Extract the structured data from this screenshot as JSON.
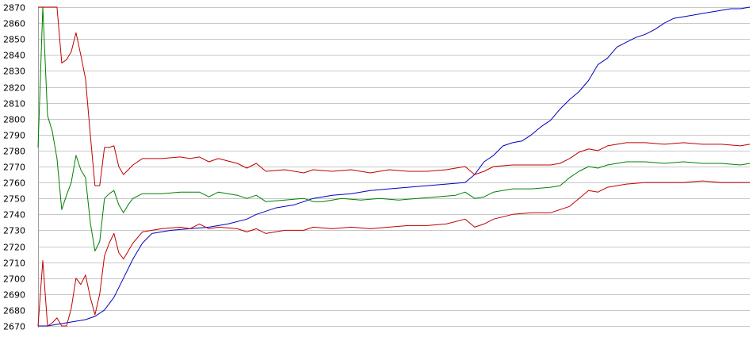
{
  "chart_data": {
    "type": "line",
    "title": "",
    "xlabel": "",
    "ylabel": "",
    "ylim": [
      2670,
      2870
    ],
    "xlim": [
      0,
      150
    ],
    "grid": true,
    "yticks": [
      2670,
      2680,
      2690,
      2700,
      2710,
      2720,
      2730,
      2740,
      2750,
      2760,
      2770,
      2780,
      2790,
      2800,
      2810,
      2820,
      2830,
      2840,
      2850,
      2860,
      2870
    ],
    "series": [
      {
        "color": "#0000c0",
        "points": [
          [
            0,
            2670
          ],
          [
            2,
            2670
          ],
          [
            4,
            2671
          ],
          [
            6,
            2672
          ],
          [
            8,
            2673
          ],
          [
            10,
            2674
          ],
          [
            12,
            2676
          ],
          [
            14,
            2680
          ],
          [
            16,
            2688
          ],
          [
            18,
            2700
          ],
          [
            20,
            2712
          ],
          [
            22,
            2722
          ],
          [
            24,
            2728
          ],
          [
            28,
            2730
          ],
          [
            32,
            2731
          ],
          [
            36,
            2732
          ],
          [
            40,
            2734
          ],
          [
            44,
            2737
          ],
          [
            46,
            2740
          ],
          [
            50,
            2744
          ],
          [
            54,
            2746
          ],
          [
            58,
            2750
          ],
          [
            62,
            2752
          ],
          [
            66,
            2753
          ],
          [
            70,
            2755
          ],
          [
            74,
            2756
          ],
          [
            78,
            2757
          ],
          [
            82,
            2758
          ],
          [
            86,
            2759
          ],
          [
            90,
            2760
          ],
          [
            92,
            2765
          ],
          [
            94,
            2773
          ],
          [
            96,
            2777
          ],
          [
            98,
            2783
          ],
          [
            100,
            2785
          ],
          [
            102,
            2786
          ],
          [
            104,
            2790
          ],
          [
            106,
            2795
          ],
          [
            108,
            2799
          ],
          [
            110,
            2806
          ],
          [
            112,
            2812
          ],
          [
            114,
            2817
          ],
          [
            116,
            2824
          ],
          [
            118,
            2834
          ],
          [
            120,
            2838
          ],
          [
            122,
            2845
          ],
          [
            124,
            2848
          ],
          [
            126,
            2851
          ],
          [
            128,
            2853
          ],
          [
            130,
            2856
          ],
          [
            132,
            2860
          ],
          [
            134,
            2863
          ],
          [
            136,
            2864
          ],
          [
            138,
            2865
          ],
          [
            140,
            2866
          ],
          [
            142,
            2867
          ],
          [
            144,
            2868
          ],
          [
            146,
            2869
          ],
          [
            148,
            2869
          ],
          [
            150,
            2870
          ]
        ]
      },
      {
        "color": "#008000",
        "points": [
          [
            0,
            2782
          ],
          [
            1,
            2870
          ],
          [
            2,
            2802
          ],
          [
            3,
            2792
          ],
          [
            4,
            2775
          ],
          [
            5,
            2743
          ],
          [
            6,
            2752
          ],
          [
            7,
            2760
          ],
          [
            8,
            2777
          ],
          [
            9,
            2768
          ],
          [
            10,
            2763
          ],
          [
            11,
            2735
          ],
          [
            12,
            2717
          ],
          [
            13,
            2723
          ],
          [
            14,
            2750
          ],
          [
            15,
            2753
          ],
          [
            16,
            2755
          ],
          [
            17,
            2746
          ],
          [
            18,
            2741
          ],
          [
            19,
            2746
          ],
          [
            20,
            2750
          ],
          [
            22,
            2753
          ],
          [
            26,
            2753
          ],
          [
            30,
            2754
          ],
          [
            34,
            2754
          ],
          [
            36,
            2751
          ],
          [
            38,
            2754
          ],
          [
            42,
            2752
          ],
          [
            44,
            2750
          ],
          [
            46,
            2752
          ],
          [
            48,
            2748
          ],
          [
            52,
            2749
          ],
          [
            56,
            2750
          ],
          [
            58,
            2748
          ],
          [
            60,
            2748
          ],
          [
            64,
            2750
          ],
          [
            68,
            2749
          ],
          [
            72,
            2750
          ],
          [
            76,
            2749
          ],
          [
            80,
            2750
          ],
          [
            84,
            2751
          ],
          [
            88,
            2752
          ],
          [
            90,
            2754
          ],
          [
            92,
            2750
          ],
          [
            94,
            2751
          ],
          [
            96,
            2754
          ],
          [
            100,
            2756
          ],
          [
            104,
            2756
          ],
          [
            108,
            2757
          ],
          [
            110,
            2758
          ],
          [
            112,
            2763
          ],
          [
            114,
            2767
          ],
          [
            116,
            2770
          ],
          [
            118,
            2769
          ],
          [
            120,
            2771
          ],
          [
            124,
            2773
          ],
          [
            128,
            2773
          ],
          [
            132,
            2772
          ],
          [
            136,
            2773
          ],
          [
            140,
            2772
          ],
          [
            144,
            2772
          ],
          [
            148,
            2771
          ],
          [
            150,
            2772
          ]
        ]
      },
      {
        "color": "#c00000",
        "points": [
          [
            0,
            2870
          ],
          [
            2,
            2870
          ],
          [
            4,
            2870
          ],
          [
            5,
            2835
          ],
          [
            6,
            2837
          ],
          [
            7,
            2842
          ],
          [
            8,
            2854
          ],
          [
            9,
            2840
          ],
          [
            10,
            2825
          ],
          [
            11,
            2790
          ],
          [
            12,
            2758
          ],
          [
            13,
            2758
          ],
          [
            14,
            2782
          ],
          [
            15,
            2782
          ],
          [
            16,
            2783
          ],
          [
            17,
            2770
          ],
          [
            18,
            2765
          ],
          [
            20,
            2771
          ],
          [
            22,
            2775
          ],
          [
            26,
            2775
          ],
          [
            30,
            2776
          ],
          [
            32,
            2775
          ],
          [
            34,
            2776
          ],
          [
            36,
            2773
          ],
          [
            38,
            2775
          ],
          [
            42,
            2772
          ],
          [
            44,
            2769
          ],
          [
            46,
            2772
          ],
          [
            48,
            2767
          ],
          [
            52,
            2768
          ],
          [
            56,
            2766
          ],
          [
            58,
            2768
          ],
          [
            62,
            2767
          ],
          [
            66,
            2768
          ],
          [
            70,
            2766
          ],
          [
            74,
            2768
          ],
          [
            78,
            2767
          ],
          [
            82,
            2767
          ],
          [
            86,
            2768
          ],
          [
            90,
            2770
          ],
          [
            92,
            2765
          ],
          [
            94,
            2767
          ],
          [
            96,
            2770
          ],
          [
            100,
            2771
          ],
          [
            104,
            2771
          ],
          [
            108,
            2771
          ],
          [
            110,
            2772
          ],
          [
            112,
            2775
          ],
          [
            114,
            2779
          ],
          [
            116,
            2781
          ],
          [
            118,
            2780
          ],
          [
            120,
            2783
          ],
          [
            124,
            2785
          ],
          [
            128,
            2785
          ],
          [
            132,
            2784
          ],
          [
            136,
            2785
          ],
          [
            140,
            2784
          ],
          [
            144,
            2784
          ],
          [
            148,
            2783
          ],
          [
            150,
            2784
          ]
        ]
      },
      {
        "color": "#c00000",
        "points": [
          [
            0,
            2670
          ],
          [
            1,
            2711
          ],
          [
            2,
            2670
          ],
          [
            3,
            2672
          ],
          [
            4,
            2675
          ],
          [
            5,
            2670
          ],
          [
            6,
            2670
          ],
          [
            7,
            2681
          ],
          [
            8,
            2700
          ],
          [
            9,
            2696
          ],
          [
            10,
            2702
          ],
          [
            11,
            2688
          ],
          [
            12,
            2677
          ],
          [
            13,
            2690
          ],
          [
            14,
            2714
          ],
          [
            15,
            2722
          ],
          [
            16,
            2728
          ],
          [
            17,
            2716
          ],
          [
            18,
            2712
          ],
          [
            20,
            2722
          ],
          [
            22,
            2729
          ],
          [
            26,
            2731
          ],
          [
            30,
            2732
          ],
          [
            32,
            2731
          ],
          [
            34,
            2734
          ],
          [
            36,
            2731
          ],
          [
            38,
            2732
          ],
          [
            42,
            2731
          ],
          [
            44,
            2729
          ],
          [
            46,
            2731
          ],
          [
            48,
            2728
          ],
          [
            52,
            2730
          ],
          [
            56,
            2730
          ],
          [
            58,
            2732
          ],
          [
            62,
            2731
          ],
          [
            66,
            2732
          ],
          [
            70,
            2731
          ],
          [
            74,
            2732
          ],
          [
            78,
            2733
          ],
          [
            82,
            2733
          ],
          [
            86,
            2734
          ],
          [
            90,
            2737
          ],
          [
            92,
            2732
          ],
          [
            94,
            2734
          ],
          [
            96,
            2737
          ],
          [
            100,
            2740
          ],
          [
            104,
            2741
          ],
          [
            108,
            2741
          ],
          [
            110,
            2743
          ],
          [
            112,
            2745
          ],
          [
            114,
            2750
          ],
          [
            116,
            2755
          ],
          [
            118,
            2754
          ],
          [
            120,
            2757
          ],
          [
            124,
            2759
          ],
          [
            128,
            2760
          ],
          [
            132,
            2760
          ],
          [
            136,
            2760
          ],
          [
            140,
            2761
          ],
          [
            144,
            2760
          ],
          [
            148,
            2760
          ],
          [
            150,
            2760
          ]
        ]
      }
    ]
  }
}
